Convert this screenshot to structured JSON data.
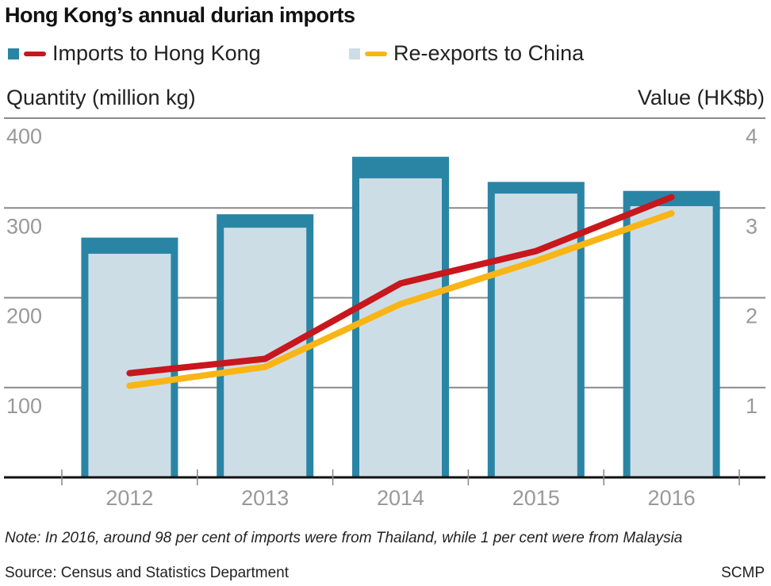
{
  "title": "Hong Kong’s annual durian imports",
  "legend": [
    {
      "label": "Imports to Hong Kong",
      "bar_color": "#2a85a5",
      "line_color": "#c8171d"
    },
    {
      "label": "Re-exports to China",
      "bar_color": "#cddde6",
      "line_color": "#f9b515"
    }
  ],
  "left_axis_title": "Quantity (million kg)",
  "right_axis_title": "Value (HK$b)",
  "note": "Note: In 2016, around 98 per cent of imports were from Thailand, while 1 per cent were from Malaysia",
  "source": "Source: Census and Statistics Department",
  "credit": "SCMP",
  "chart_data": {
    "type": "bar",
    "title": "Hong Kong’s annual durian imports",
    "categories": [
      "2012",
      "2013",
      "2014",
      "2015",
      "2016"
    ],
    "ylabel": "Quantity (million kg)",
    "y2label": "Value (HK$b)",
    "ylim": [
      0,
      400
    ],
    "y2lim": [
      0,
      4
    ],
    "yticks": [
      "100",
      "200",
      "300",
      "400"
    ],
    "y2ticks": [
      "1",
      "2",
      "3",
      "4"
    ],
    "grid": true,
    "legend_position": "top-left",
    "series": [
      {
        "name": "Imports to Hong Kong (quantity)",
        "type": "bar",
        "axis": "left",
        "values": [
          267,
          293,
          357,
          329,
          319
        ]
      },
      {
        "name": "Re-exports to China (quantity)",
        "type": "bar",
        "axis": "left",
        "values": [
          249,
          278,
          333,
          316,
          302
        ]
      },
      {
        "name": "Imports to Hong Kong (value)",
        "type": "line",
        "axis": "right",
        "values": [
          1.16,
          1.32,
          2.16,
          2.52,
          3.12
        ]
      },
      {
        "name": "Re-exports to China (value)",
        "type": "line",
        "axis": "right",
        "values": [
          1.02,
          1.23,
          1.93,
          2.41,
          2.94
        ]
      }
    ]
  }
}
